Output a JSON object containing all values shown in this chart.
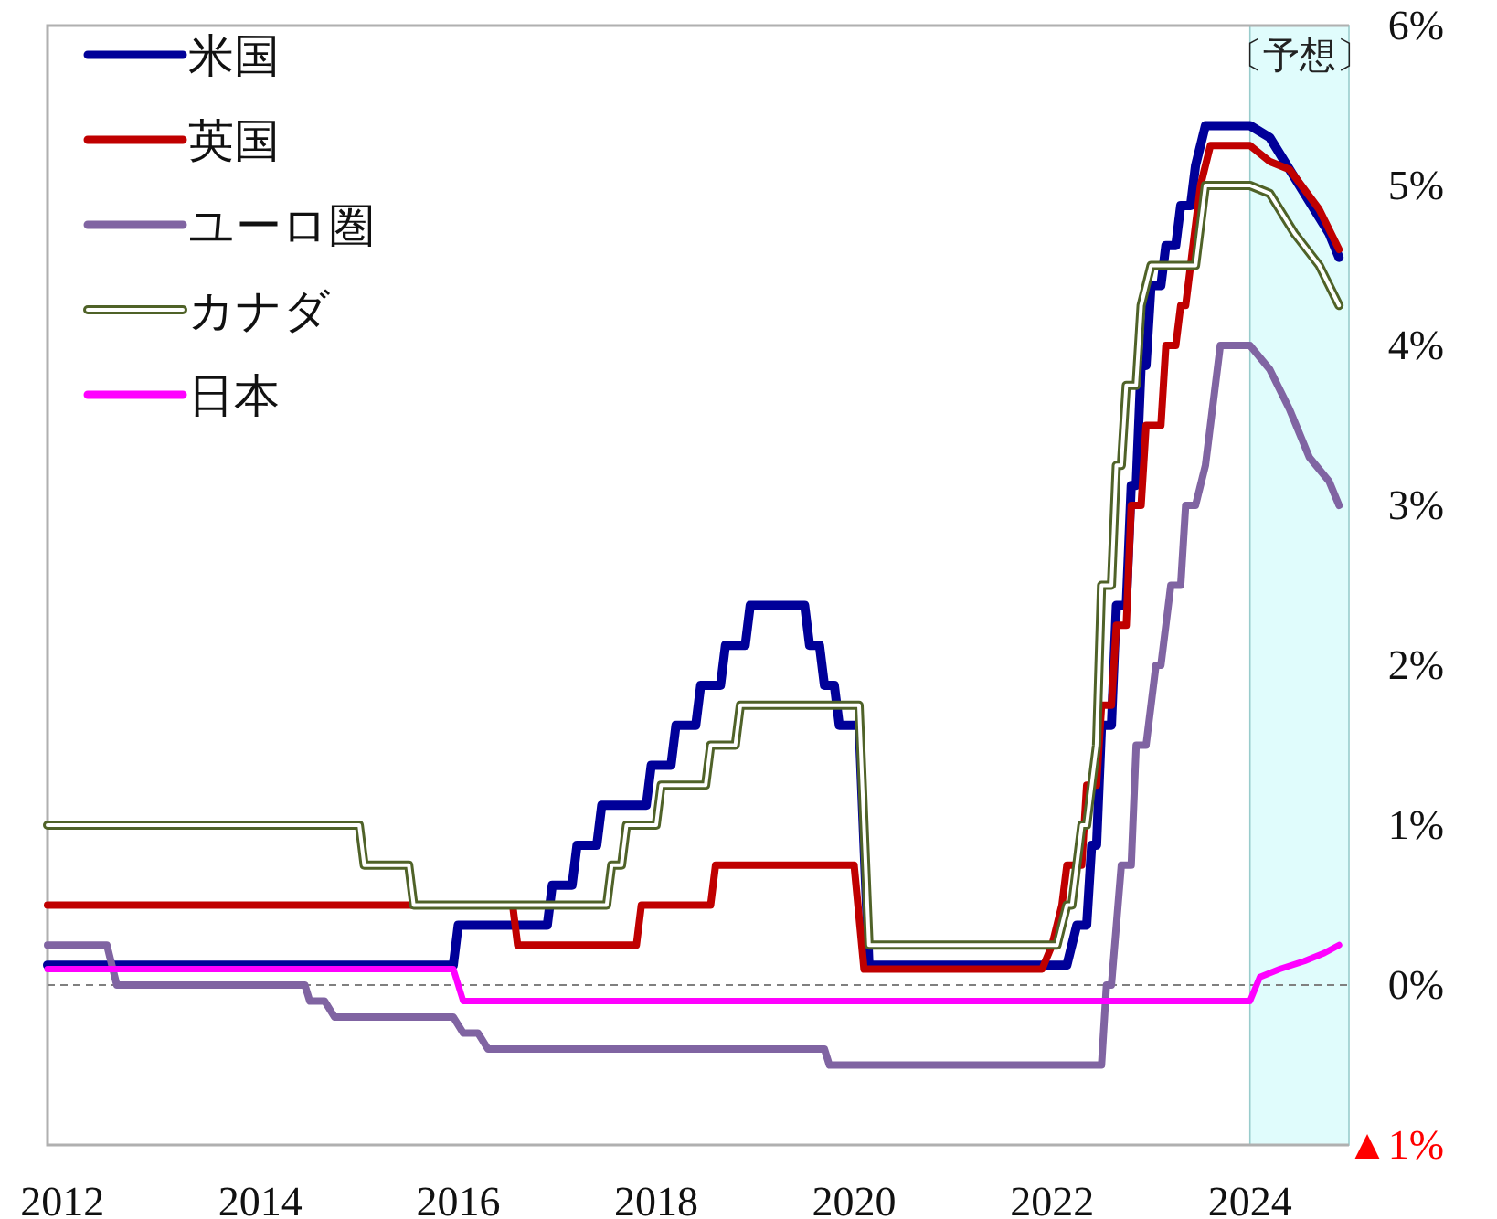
{
  "chart_data": {
    "type": "line",
    "xlim": [
      2011.85,
      2025.0
    ],
    "ylim": [
      -1,
      6
    ],
    "xticks": [
      2012,
      2014,
      2016,
      2018,
      2020,
      2022,
      2024
    ],
    "yticks": [
      {
        "value": -1,
        "label": "▲1%"
      },
      {
        "value": 0,
        "label": "0%"
      },
      {
        "value": 1,
        "label": "1%"
      },
      {
        "value": 2,
        "label": "2%"
      },
      {
        "value": 3,
        "label": "3%"
      },
      {
        "value": 4,
        "label": "4%"
      },
      {
        "value": 5,
        "label": "5%"
      },
      {
        "value": 6,
        "label": "6%"
      }
    ],
    "legend": "top left",
    "grid": false,
    "ref_lines": [
      {
        "axis": "y",
        "value": 0,
        "color": "#808080",
        "line_style": "dashed"
      }
    ],
    "bands": [
      {
        "axis": "x",
        "from": 2024.0,
        "to": 2025.0,
        "label": "〔予想〕",
        "color": "#e0fcfc"
      }
    ],
    "series": [
      {
        "name": "米国",
        "color": "#000099",
        "x": [
          2011.85,
          2015.95,
          2016.0,
          2016.9,
          2016.95,
          2017.15,
          2017.2,
          2017.4,
          2017.45,
          2017.9,
          2017.95,
          2018.15,
          2018.2,
          2018.4,
          2018.45,
          2018.65,
          2018.7,
          2018.9,
          2018.95,
          2019.5,
          2019.55,
          2019.65,
          2019.7,
          2019.8,
          2019.85,
          2020.05,
          2020.15,
          2022.15,
          2022.25,
          2022.35,
          2022.4,
          2022.45,
          2022.5,
          2022.6,
          2022.65,
          2022.75,
          2022.8,
          2022.85,
          2022.9,
          2022.95,
          2023.0,
          2023.1,
          2023.15,
          2023.25,
          2023.3,
          2023.4,
          2023.45,
          2023.55,
          2024.0,
          2024.2,
          2024.5,
          2024.8,
          2024.9
        ],
        "values": [
          0.125,
          0.125,
          0.375,
          0.375,
          0.625,
          0.625,
          0.875,
          0.875,
          1.125,
          1.125,
          1.375,
          1.375,
          1.625,
          1.625,
          1.875,
          1.875,
          2.125,
          2.125,
          2.375,
          2.375,
          2.125,
          2.125,
          1.875,
          1.875,
          1.625,
          1.625,
          0.125,
          0.125,
          0.375,
          0.375,
          0.875,
          0.875,
          1.625,
          1.625,
          2.375,
          2.375,
          3.125,
          3.125,
          3.875,
          3.875,
          4.375,
          4.375,
          4.625,
          4.625,
          4.875,
          4.875,
          5.125,
          5.375,
          5.375,
          5.3,
          5.0,
          4.7,
          4.55
        ]
      },
      {
        "name": "英国",
        "color": "#c00000",
        "x": [
          2011.85,
          2016.55,
          2016.6,
          2017.8,
          2017.85,
          2018.55,
          2018.6,
          2020.0,
          2020.1,
          2021.9,
          2022.0,
          2022.1,
          2022.15,
          2022.3,
          2022.35,
          2022.45,
          2022.5,
          2022.6,
          2022.65,
          2022.75,
          2022.8,
          2022.9,
          2022.95,
          2023.1,
          2023.15,
          2023.25,
          2023.3,
          2023.35,
          2023.4,
          2023.5,
          2023.6,
          2024.0,
          2024.2,
          2024.4,
          2024.7,
          2024.9
        ],
        "values": [
          0.5,
          0.5,
          0.25,
          0.25,
          0.5,
          0.5,
          0.75,
          0.75,
          0.1,
          0.1,
          0.25,
          0.5,
          0.75,
          0.75,
          1.25,
          1.25,
          1.75,
          1.75,
          2.25,
          2.25,
          3.0,
          3.0,
          3.5,
          3.5,
          4.0,
          4.0,
          4.25,
          4.25,
          4.5,
          5.0,
          5.25,
          5.25,
          5.15,
          5.1,
          4.85,
          4.6
        ]
      },
      {
        "name": "ユーロ圏",
        "color": "#8064a2",
        "x": [
          2011.85,
          2012.45,
          2012.55,
          2014.45,
          2014.5,
          2014.65,
          2014.75,
          2015.95,
          2016.05,
          2016.2,
          2016.3,
          2019.7,
          2019.75,
          2022.5,
          2022.55,
          2022.6,
          2022.7,
          2022.8,
          2022.85,
          2022.95,
          2023.05,
          2023.1,
          2023.2,
          2023.3,
          2023.35,
          2023.45,
          2023.55,
          2023.6,
          2023.7,
          2024.0,
          2024.2,
          2024.4,
          2024.6,
          2024.8,
          2024.9
        ],
        "values": [
          0.25,
          0.25,
          0.0,
          0.0,
          -0.1,
          -0.1,
          -0.2,
          -0.2,
          -0.3,
          -0.3,
          -0.4,
          -0.4,
          -0.5,
          -0.5,
          0.0,
          0.0,
          0.75,
          0.75,
          1.5,
          1.5,
          2.0,
          2.0,
          2.5,
          2.5,
          3.0,
          3.0,
          3.25,
          3.5,
          4.0,
          4.0,
          3.85,
          3.6,
          3.3,
          3.15,
          3.0
        ]
      },
      {
        "name": "カナダ",
        "color": "#4f6228",
        "x": [
          2011.85,
          2015.0,
          2015.05,
          2015.5,
          2015.55,
          2017.5,
          2017.55,
          2017.65,
          2017.7,
          2018.0,
          2018.05,
          2018.5,
          2018.55,
          2018.8,
          2018.85,
          2020.05,
          2020.15,
          2022.05,
          2022.15,
          2022.2,
          2022.3,
          2022.35,
          2022.45,
          2022.5,
          2022.6,
          2022.65,
          2022.7,
          2022.75,
          2022.85,
          2022.9,
          2023.0,
          2023.45,
          2023.55,
          2024.0,
          2024.2,
          2024.45,
          2024.7,
          2024.9
        ],
        "values": [
          1.0,
          1.0,
          0.75,
          0.75,
          0.5,
          0.5,
          0.75,
          0.75,
          1.0,
          1.0,
          1.25,
          1.25,
          1.5,
          1.5,
          1.75,
          1.75,
          0.25,
          0.25,
          0.5,
          0.5,
          1.0,
          1.0,
          1.5,
          2.5,
          2.5,
          3.25,
          3.25,
          3.75,
          3.75,
          4.25,
          4.5,
          4.5,
          5.0,
          5.0,
          4.95,
          4.7,
          4.5,
          4.25
        ]
      },
      {
        "name": "日本",
        "color": "#ff00ff",
        "x": [
          2011.85,
          2015.95,
          2016.05,
          2024.0,
          2024.1,
          2024.3,
          2024.55,
          2024.75,
          2024.9
        ],
        "values": [
          0.1,
          0.1,
          -0.1,
          -0.1,
          0.05,
          0.1,
          0.15,
          0.2,
          0.25
        ]
      }
    ]
  }
}
